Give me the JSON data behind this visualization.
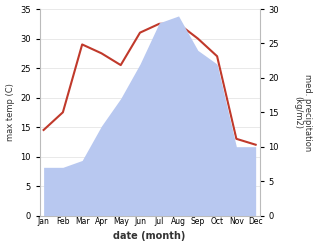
{
  "months": [
    "Jan",
    "Feb",
    "Mar",
    "Apr",
    "May",
    "Jun",
    "Jul",
    "Aug",
    "Sep",
    "Oct",
    "Nov",
    "Dec"
  ],
  "temperature": [
    14.5,
    17.5,
    29,
    27.5,
    25.5,
    31,
    32.5,
    32.5,
    30,
    27,
    13,
    12
  ],
  "precipitation": [
    7,
    7,
    8,
    13,
    17,
    22,
    28,
    29,
    24,
    22,
    10,
    10
  ],
  "temp_color": "#c0392b",
  "precip_color": "#b8c8f0",
  "ylabel_left": "max temp (C)",
  "ylabel_right": "med. precipitation\n(kg/m2)",
  "xlabel": "date (month)",
  "ylim_left": [
    0,
    35
  ],
  "ylim_right": [
    0,
    30
  ],
  "yticks_left": [
    0,
    5,
    10,
    15,
    20,
    25,
    30,
    35
  ],
  "yticks_right": [
    0,
    5,
    10,
    15,
    20,
    25,
    30
  ],
  "background_color": "#ffffff"
}
